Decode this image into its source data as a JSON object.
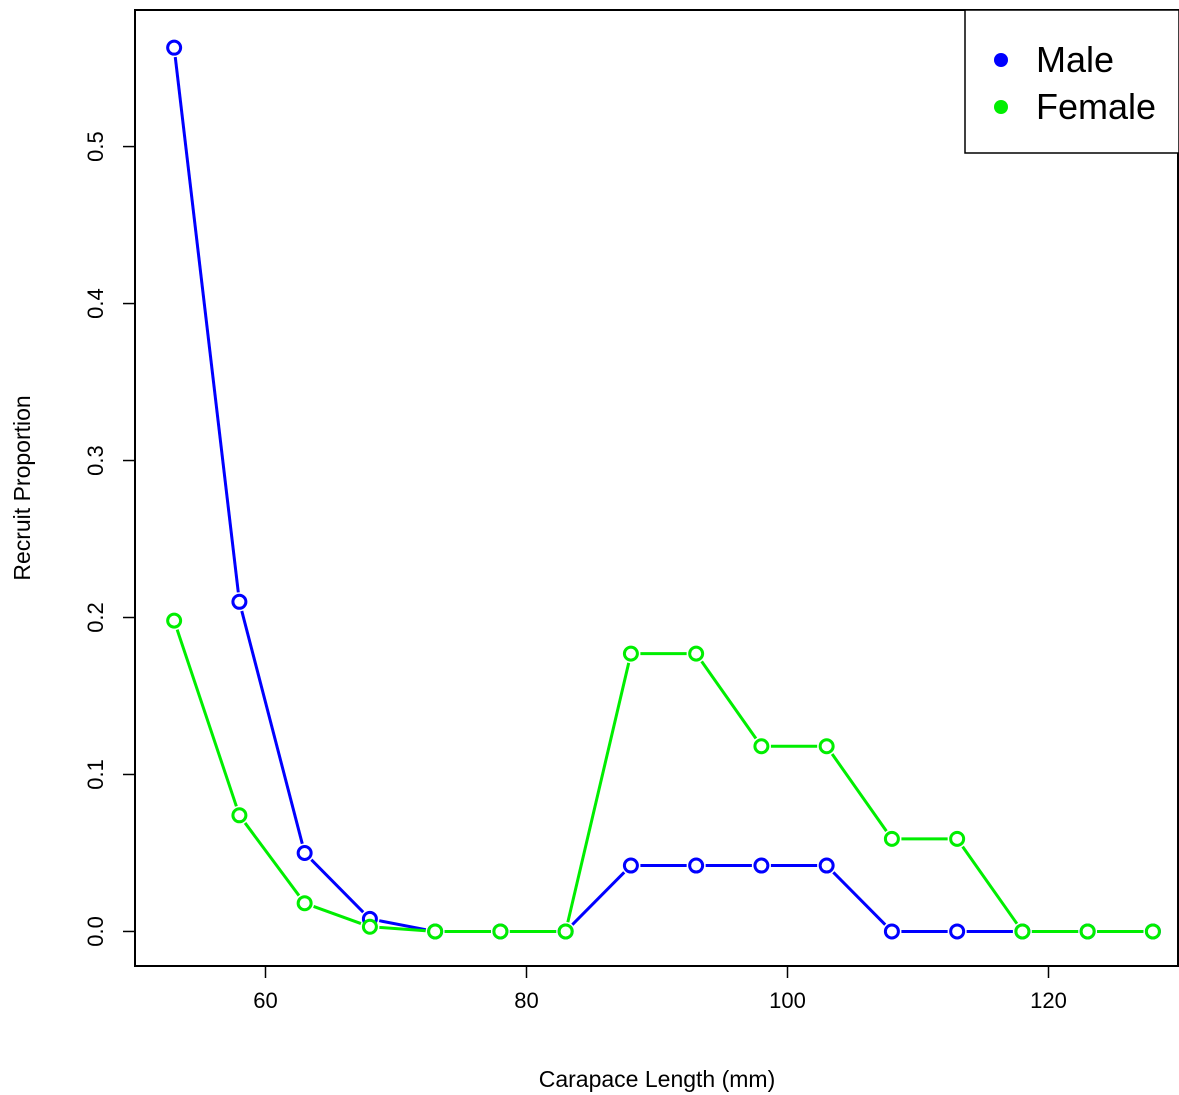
{
  "chart_data": {
    "type": "line",
    "xlabel": "Carapace Length (mm)",
    "ylabel": "Recruit Proportion",
    "xlim": [
      50,
      130
    ],
    "ylim": [
      -0.022,
      0.587
    ],
    "xticks": [
      60,
      80,
      100,
      120
    ],
    "yticks": [
      0.0,
      0.1,
      0.2,
      0.3,
      0.4,
      0.5
    ],
    "xtick_labels": [
      "60",
      "80",
      "100",
      "120"
    ],
    "ytick_labels": [
      "0.0",
      "0.1",
      "0.2",
      "0.3",
      "0.4",
      "0.5"
    ],
    "grid": false,
    "legend_position": "top-right",
    "x": [
      53,
      58,
      63,
      68,
      73,
      78,
      83,
      88,
      93,
      98,
      103,
      108,
      113,
      118,
      123,
      128
    ],
    "series": [
      {
        "name": "Male",
        "color": "#0000ff",
        "values": [
          0.563,
          0.21,
          0.05,
          0.008,
          0,
          0,
          0,
          0.042,
          0.042,
          0.042,
          0.042,
          0,
          0,
          0,
          0,
          0
        ]
      },
      {
        "name": "Female",
        "color": "#00ee00",
        "values": [
          0.198,
          0.074,
          0.018,
          0.003,
          0,
          0,
          0,
          0.177,
          0.177,
          0.118,
          0.118,
          0.059,
          0.059,
          0,
          0,
          0
        ]
      }
    ]
  }
}
